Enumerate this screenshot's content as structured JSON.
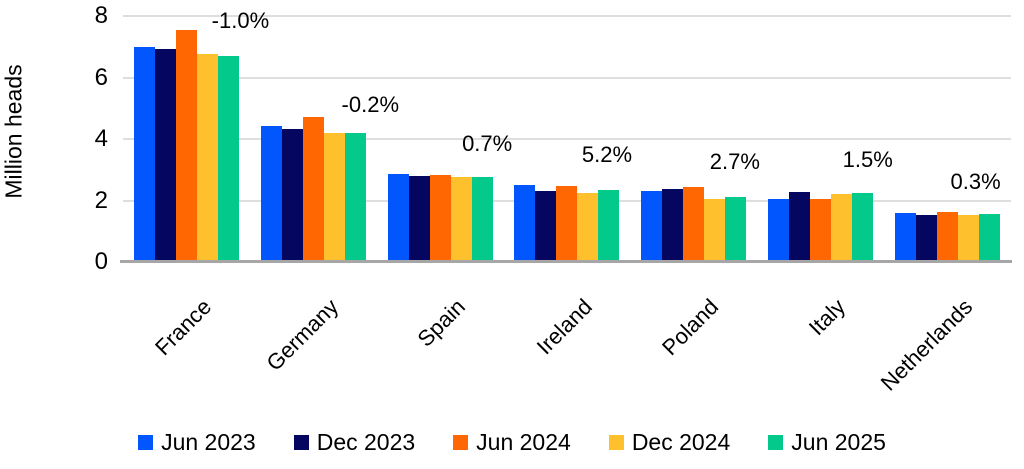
{
  "chart_data": {
    "type": "bar",
    "title": "",
    "ylabel": "Million heads",
    "ylim": [
      0,
      8
    ],
    "yticks": [
      0,
      2,
      4,
      6,
      8
    ],
    "grid": "horizontal",
    "legend_position": "bottom",
    "categories": [
      "France",
      "Germany",
      "Spain",
      "Ireland",
      "Poland",
      "Italy",
      "Netherlands"
    ],
    "series": [
      {
        "name": "Jun 2023",
        "color": "#0156FE",
        "values": [
          6.98,
          4.42,
          2.87,
          2.51,
          2.31,
          2.06,
          1.61
        ]
      },
      {
        "name": "Dec 2023",
        "color": "#05065F",
        "values": [
          6.92,
          4.33,
          2.81,
          2.31,
          2.38,
          2.27,
          1.54
        ]
      },
      {
        "name": "Jun 2024",
        "color": "#FE6701",
        "values": [
          7.55,
          4.7,
          2.84,
          2.47,
          2.44,
          2.06,
          1.63
        ]
      },
      {
        "name": "Dec 2024",
        "color": "#FEC02D",
        "values": [
          6.78,
          4.21,
          2.75,
          2.25,
          2.04,
          2.2,
          1.53
        ]
      },
      {
        "name": "Jun 2025",
        "color": "#03CA8B",
        "values": [
          6.7,
          4.21,
          2.78,
          2.34,
          2.11,
          2.25,
          1.56
        ]
      }
    ],
    "annotations": [
      "-1.0%",
      "-0.2%",
      "0.7%",
      "5.2%",
      "2.7%",
      "1.5%",
      "0.3%"
    ],
    "annotation_layout": {
      "dx": [
        54,
        57,
        47,
        40,
        41,
        47,
        28
      ],
      "dy": [
        -4,
        -1,
        17,
        17,
        12,
        19,
        17
      ]
    }
  },
  "colors": {
    "background": "#FFFFFF",
    "text": "#000000",
    "gridline": "#DEDEDE",
    "axis_line": "#A6A6A6"
  }
}
